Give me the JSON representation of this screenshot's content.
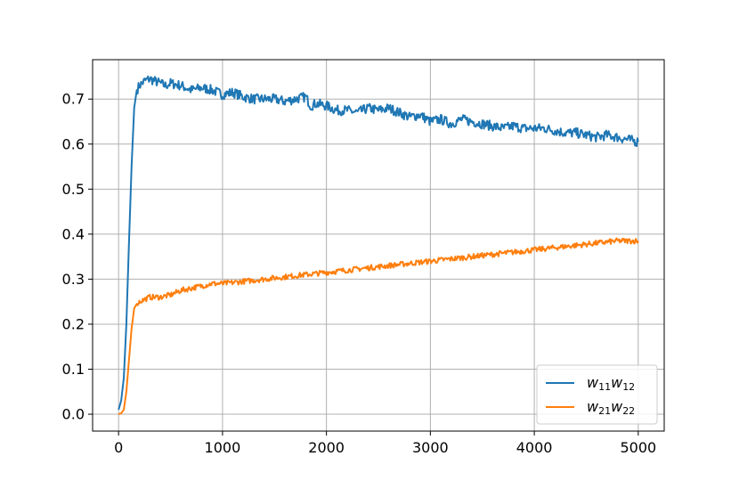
{
  "chart_data": {
    "type": "line",
    "title": "",
    "xlabel": "",
    "ylabel": "",
    "xlim": [
      -250,
      5250
    ],
    "ylim": [
      -0.0375,
      0.7875
    ],
    "x_ticks": [
      0,
      1000,
      2000,
      3000,
      4000,
      5000
    ],
    "x_tick_labels": [
      "0",
      "1000",
      "2000",
      "3000",
      "4000",
      "5000"
    ],
    "y_ticks": [
      0.0,
      0.1,
      0.2,
      0.3,
      0.4,
      0.5,
      0.6,
      0.7
    ],
    "y_tick_labels": [
      "0.0",
      "0.1",
      "0.2",
      "0.3",
      "0.4",
      "0.5",
      "0.6",
      "0.7"
    ],
    "grid": true,
    "legend_position": "lower-right",
    "series": [
      {
        "name": "w11w12",
        "legend_base_1": "w",
        "legend_sub_1": "11",
        "legend_base_2": "w",
        "legend_sub_2": "12",
        "color": "#1f77b4",
        "x": [
          0,
          25,
          50,
          75,
          100,
          125,
          150,
          175,
          200,
          250,
          300,
          350,
          400,
          450,
          500,
          600,
          700,
          800,
          900,
          1000,
          1100,
          1200,
          1300,
          1400,
          1500,
          1600,
          1700,
          1800,
          1850,
          1900,
          2000,
          2100,
          2200,
          2300,
          2400,
          2500,
          2600,
          2700,
          2800,
          2900,
          3000,
          3100,
          3200,
          3300,
          3400,
          3500,
          3600,
          3700,
          3800,
          3900,
          4000,
          4100,
          4200,
          4300,
          4400,
          4500,
          4600,
          4700,
          4800,
          4900,
          5000
        ],
        "y": [
          0.01,
          0.03,
          0.08,
          0.2,
          0.38,
          0.55,
          0.68,
          0.72,
          0.73,
          0.74,
          0.745,
          0.74,
          0.735,
          0.73,
          0.735,
          0.73,
          0.72,
          0.725,
          0.72,
          0.71,
          0.715,
          0.705,
          0.7,
          0.7,
          0.7,
          0.695,
          0.7,
          0.705,
          0.685,
          0.69,
          0.685,
          0.675,
          0.675,
          0.67,
          0.68,
          0.675,
          0.68,
          0.67,
          0.66,
          0.665,
          0.65,
          0.655,
          0.645,
          0.655,
          0.65,
          0.645,
          0.64,
          0.635,
          0.64,
          0.635,
          0.635,
          0.635,
          0.63,
          0.625,
          0.625,
          0.62,
          0.615,
          0.62,
          0.615,
          0.61,
          0.605
        ]
      },
      {
        "name": "w21w22",
        "legend_base_1": "w",
        "legend_sub_1": "21",
        "legend_base_2": "w",
        "legend_sub_2": "22",
        "color": "#ff7f0e",
        "x": [
          0,
          25,
          50,
          75,
          100,
          125,
          150,
          175,
          200,
          250,
          300,
          400,
          500,
          600,
          700,
          800,
          900,
          1000,
          1200,
          1400,
          1600,
          1800,
          2000,
          2200,
          2400,
          2600,
          2800,
          3000,
          3200,
          3400,
          3600,
          3800,
          4000,
          4200,
          4400,
          4600,
          4800,
          5000
        ],
        "y": [
          0.0,
          0.002,
          0.01,
          0.05,
          0.12,
          0.19,
          0.235,
          0.245,
          0.25,
          0.255,
          0.26,
          0.26,
          0.265,
          0.275,
          0.28,
          0.285,
          0.29,
          0.29,
          0.295,
          0.3,
          0.305,
          0.31,
          0.315,
          0.32,
          0.325,
          0.33,
          0.335,
          0.34,
          0.345,
          0.35,
          0.355,
          0.36,
          0.365,
          0.37,
          0.375,
          0.38,
          0.385,
          0.385
        ]
      }
    ]
  }
}
